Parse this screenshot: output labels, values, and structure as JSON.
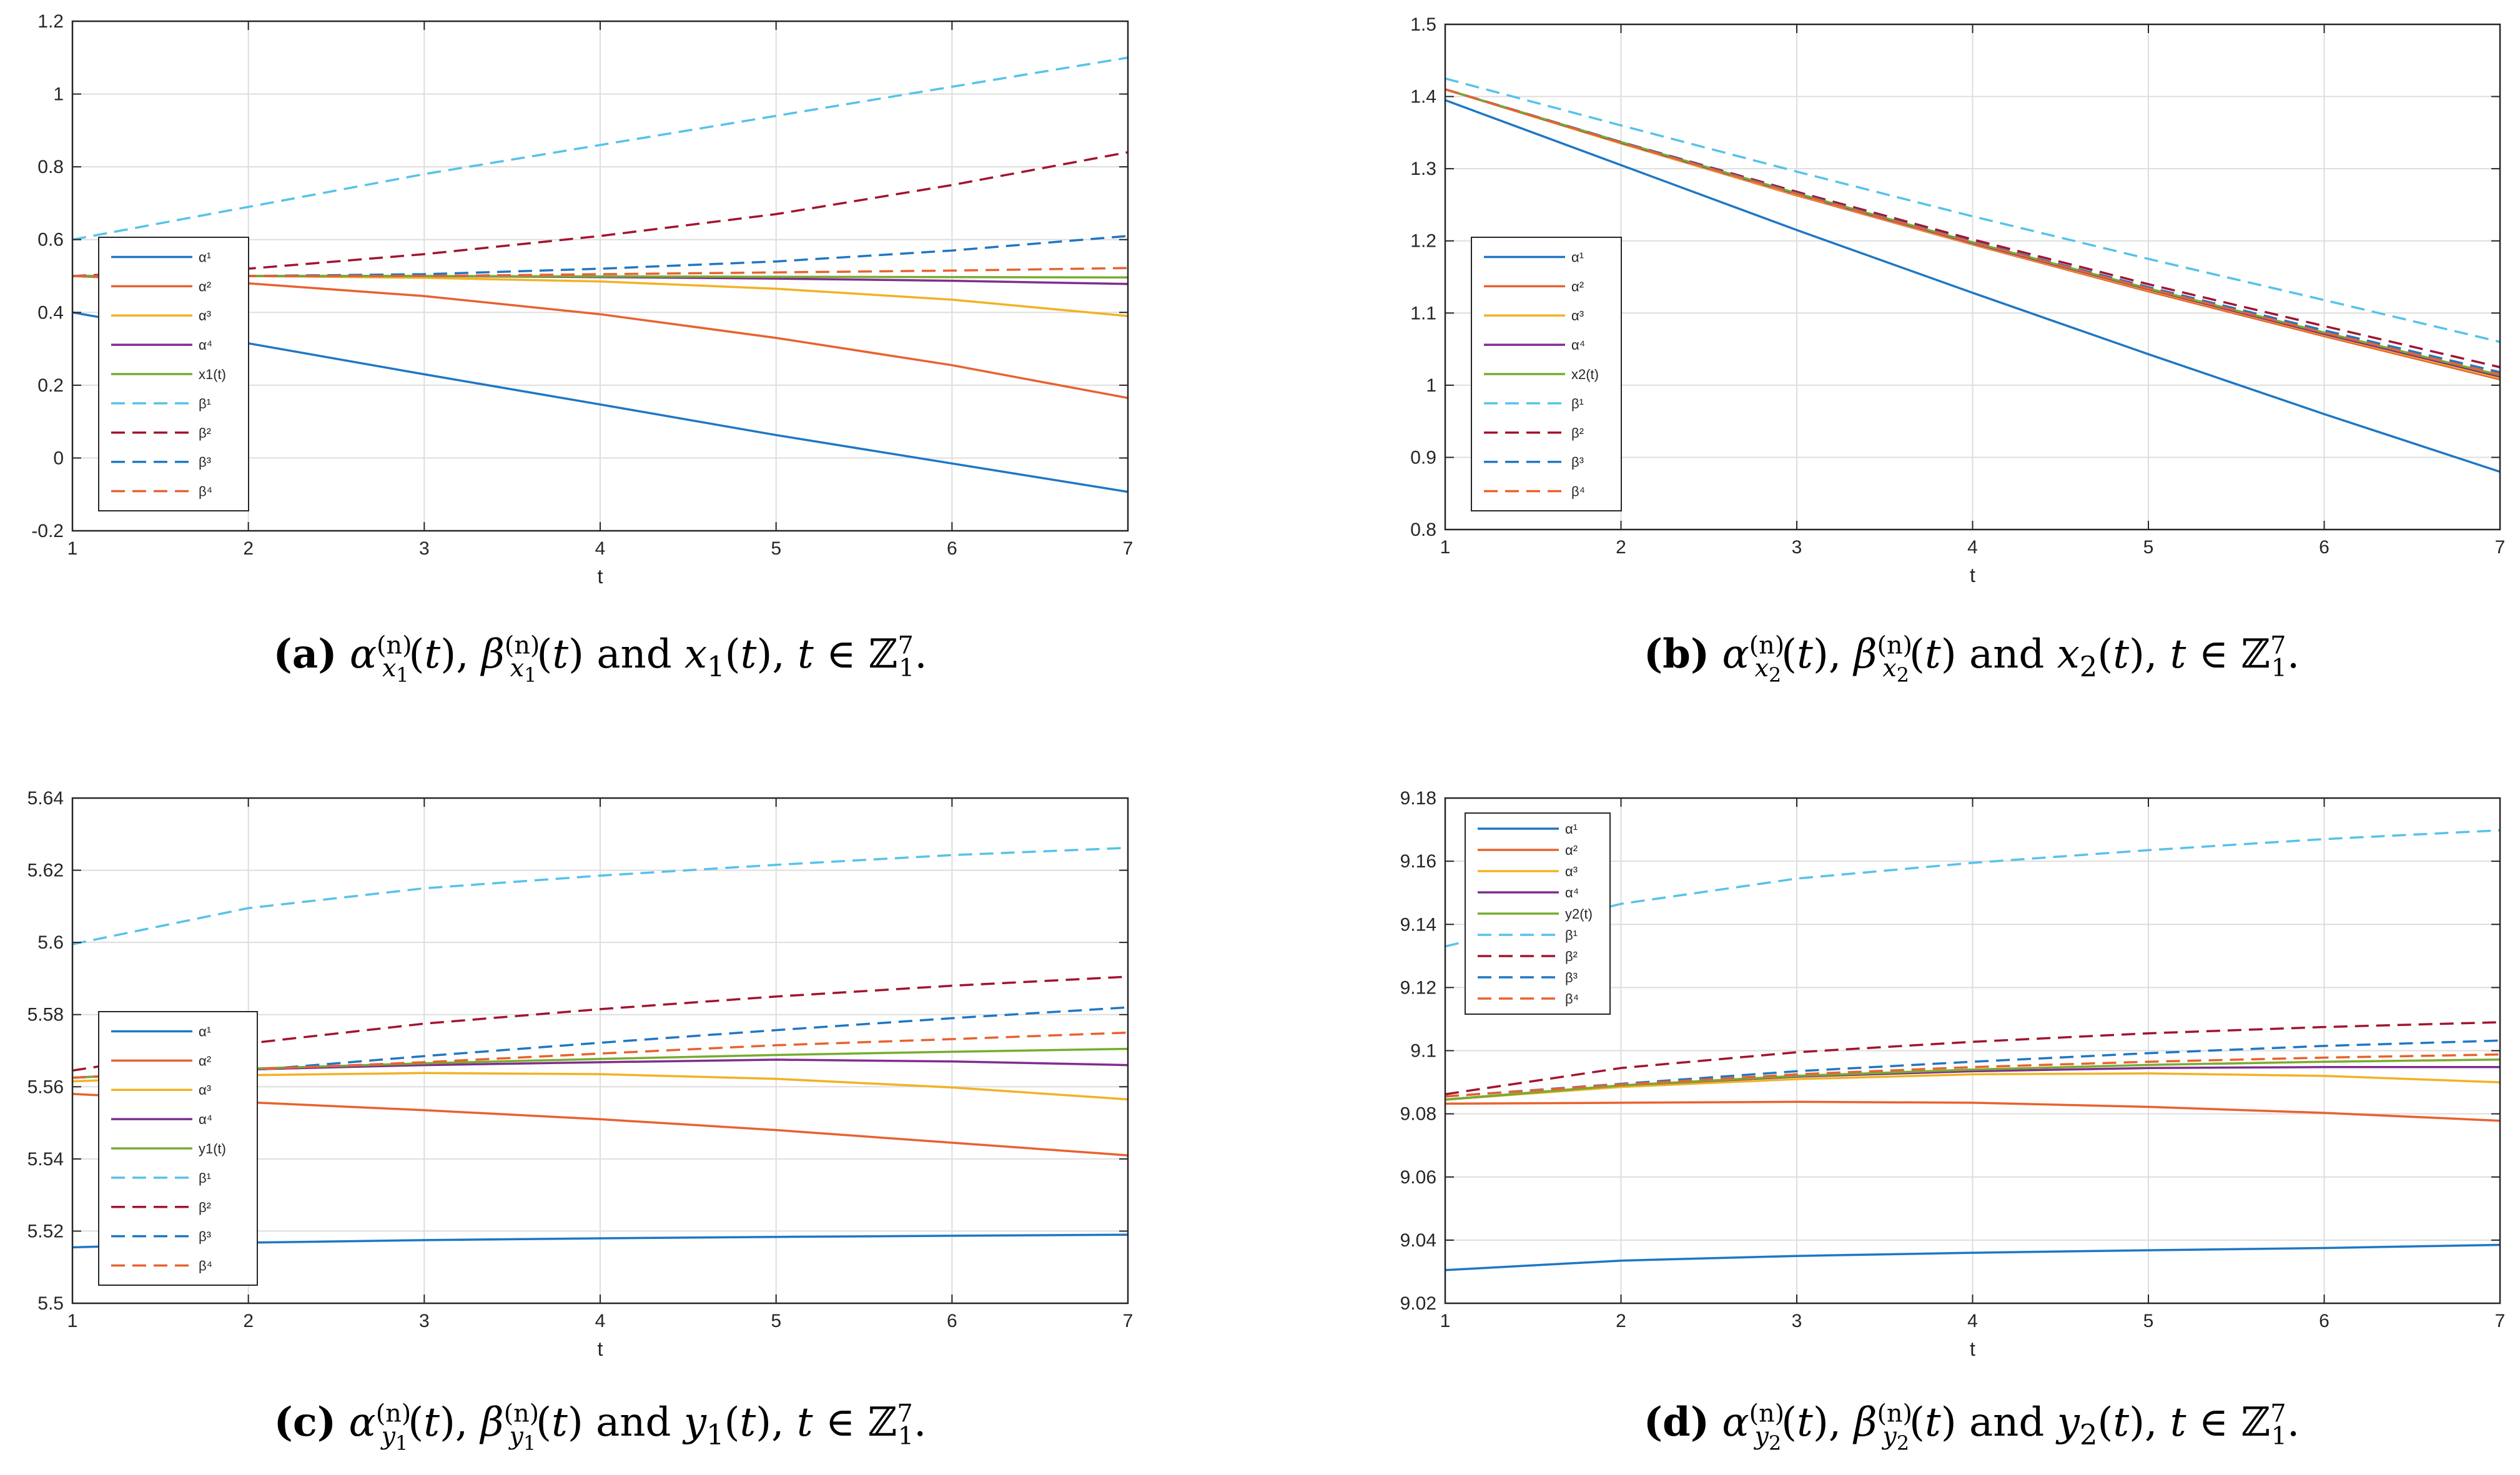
{
  "figure": {
    "legend_labels_common": [
      "α¹",
      "α²",
      "α³",
      "α⁴",
      null,
      "β¹",
      "β²",
      "β³",
      "β⁴"
    ],
    "colors": {
      "alpha1": "#1f77c4",
      "alpha2": "#e8622f",
      "alpha3": "#f0b325",
      "alpha4": "#7e2f8e",
      "state": "#77ac30",
      "beta1": "#56c2ea",
      "beta2": "#a2142f",
      "beta3": "#1f77c4",
      "beta4": "#e8622f"
    }
  },
  "chart_data": [
    {
      "id": "a",
      "type": "line",
      "xlabel": "t",
      "x": [
        1,
        2,
        3,
        4,
        5,
        6,
        7
      ],
      "xlim": [
        1,
        7
      ],
      "ylim": [
        -0.2,
        1.2
      ],
      "yticks": [
        "-0.2",
        "0",
        "0.2",
        "0.4",
        "0.6",
        "0.8",
        "1",
        "1.2"
      ],
      "xticks": [
        "1",
        "2",
        "3",
        "4",
        "5",
        "6",
        "7"
      ],
      "grid": true,
      "legend_position": "middle-left",
      "legend_state_label": "x1(t)",
      "series": [
        {
          "name": "α¹",
          "style": "solid",
          "color": "alpha1",
          "values": [
            0.4,
            0.315,
            0.23,
            0.147,
            0.063,
            -0.015,
            -0.093
          ]
        },
        {
          "name": "α²",
          "style": "solid",
          "color": "alpha2",
          "values": [
            0.5,
            0.48,
            0.445,
            0.395,
            0.33,
            0.255,
            0.165
          ]
        },
        {
          "name": "α³",
          "style": "solid",
          "color": "alpha3",
          "values": [
            0.5,
            0.5,
            0.495,
            0.485,
            0.465,
            0.435,
            0.39
          ]
        },
        {
          "name": "α⁴",
          "style": "solid",
          "color": "alpha4",
          "values": [
            0.5,
            0.5,
            0.5,
            0.497,
            0.493,
            0.487,
            0.478
          ]
        },
        {
          "name": "x1(t)",
          "style": "solid",
          "color": "state",
          "values": [
            0.5,
            0.5,
            0.5,
            0.499,
            0.498,
            0.497,
            0.496
          ]
        },
        {
          "name": "β¹",
          "style": "dashed",
          "color": "beta1",
          "values": [
            0.6,
            0.69,
            0.78,
            0.86,
            0.94,
            1.02,
            1.1
          ]
        },
        {
          "name": "β²",
          "style": "dashed",
          "color": "beta2",
          "values": [
            0.5,
            0.52,
            0.56,
            0.61,
            0.67,
            0.75,
            0.84
          ]
        },
        {
          "name": "β³",
          "style": "dashed",
          "color": "beta3",
          "values": [
            0.5,
            0.5,
            0.505,
            0.52,
            0.54,
            0.57,
            0.61
          ]
        },
        {
          "name": "β⁴",
          "style": "dashed",
          "color": "beta4",
          "values": [
            0.5,
            0.5,
            0.5,
            0.505,
            0.51,
            0.515,
            0.522
          ]
        }
      ]
    },
    {
      "id": "b",
      "type": "line",
      "xlabel": "t",
      "x": [
        1,
        2,
        3,
        4,
        5,
        6,
        7
      ],
      "xlim": [
        1,
        7
      ],
      "ylim": [
        0.8,
        1.5
      ],
      "yticks": [
        "0.8",
        "0.9",
        "1",
        "1.1",
        "1.2",
        "1.3",
        "1.4",
        "1.5"
      ],
      "xticks": [
        "1",
        "2",
        "3",
        "4",
        "5",
        "6",
        "7"
      ],
      "grid": true,
      "legend_position": "bottom-left",
      "legend_state_label": "x2(t)",
      "series": [
        {
          "name": "α¹",
          "style": "solid",
          "color": "alpha1",
          "values": [
            1.395,
            1.305,
            1.215,
            1.128,
            1.043,
            0.96,
            0.88
          ]
        },
        {
          "name": "α²",
          "style": "solid",
          "color": "alpha2",
          "values": [
            1.41,
            1.335,
            1.263,
            1.195,
            1.13,
            1.068,
            1.008
          ]
        },
        {
          "name": "α³",
          "style": "solid",
          "color": "alpha3",
          "values": [
            1.41,
            1.335,
            1.264,
            1.196,
            1.132,
            1.07,
            1.01
          ]
        },
        {
          "name": "α⁴",
          "style": "solid",
          "color": "alpha4",
          "values": [
            1.41,
            1.336,
            1.265,
            1.197,
            1.133,
            1.071,
            1.012
          ]
        },
        {
          "name": "x2(t)",
          "style": "solid",
          "color": "state",
          "values": [
            1.41,
            1.337,
            1.266,
            1.198,
            1.134,
            1.073,
            1.014
          ]
        },
        {
          "name": "β¹",
          "style": "dashed",
          "color": "beta1",
          "values": [
            1.425,
            1.36,
            1.296,
            1.234,
            1.175,
            1.118,
            1.06
          ]
        },
        {
          "name": "β²",
          "style": "dashed",
          "color": "beta2",
          "values": [
            1.41,
            1.337,
            1.268,
            1.202,
            1.14,
            1.082,
            1.025
          ]
        },
        {
          "name": "β³",
          "style": "dashed",
          "color": "beta3",
          "values": [
            1.41,
            1.337,
            1.266,
            1.199,
            1.136,
            1.076,
            1.018
          ]
        },
        {
          "name": "β⁴",
          "style": "dashed",
          "color": "beta4",
          "values": [
            1.41,
            1.336,
            1.265,
            1.198,
            1.134,
            1.073,
            1.015
          ]
        }
      ]
    },
    {
      "id": "c",
      "type": "line",
      "xlabel": "t",
      "x": [
        1,
        2,
        3,
        4,
        5,
        6,
        7
      ],
      "xlim": [
        1,
        7
      ],
      "ylim": [
        5.5,
        5.64
      ],
      "yticks": [
        "5.5",
        "5.52",
        "5.54",
        "5.56",
        "5.58",
        "5.6",
        "5.62",
        "5.64"
      ],
      "xticks": [
        "1",
        "2",
        "3",
        "4",
        "5",
        "6",
        "7"
      ],
      "grid": true,
      "legend_position": "bottom-left",
      "legend_state_label": "y1(t)",
      "series": [
        {
          "name": "α¹",
          "style": "solid",
          "color": "alpha1",
          "values": [
            5.5155,
            5.5168,
            5.5175,
            5.518,
            5.5184,
            5.5187,
            5.519
          ]
        },
        {
          "name": "α²",
          "style": "solid",
          "color": "alpha2",
          "values": [
            5.558,
            5.5557,
            5.5535,
            5.551,
            5.548,
            5.5445,
            5.541
          ]
        },
        {
          "name": "α³",
          "style": "solid",
          "color": "alpha3",
          "values": [
            5.5615,
            5.5632,
            5.5638,
            5.5635,
            5.5622,
            5.5598,
            5.5565
          ]
        },
        {
          "name": "α⁴",
          "style": "solid",
          "color": "alpha4",
          "values": [
            5.5625,
            5.5648,
            5.566,
            5.5668,
            5.5675,
            5.567,
            5.566
          ]
        },
        {
          "name": "y1(t)",
          "style": "solid",
          "color": "state",
          "values": [
            5.5625,
            5.565,
            5.5665,
            5.5677,
            5.5688,
            5.5697,
            5.5705
          ]
        },
        {
          "name": "β¹",
          "style": "dashed",
          "color": "beta1",
          "values": [
            5.5995,
            5.6095,
            5.615,
            5.6185,
            5.6215,
            5.6242,
            5.6262
          ]
        },
        {
          "name": "β²",
          "style": "dashed",
          "color": "beta2",
          "values": [
            5.5645,
            5.572,
            5.5775,
            5.5815,
            5.585,
            5.588,
            5.5905
          ]
        },
        {
          "name": "β³",
          "style": "dashed",
          "color": "beta3",
          "values": [
            5.5625,
            5.5645,
            5.5685,
            5.5722,
            5.5757,
            5.579,
            5.582
          ]
        },
        {
          "name": "β⁴",
          "style": "dashed",
          "color": "beta4",
          "values": [
            5.5625,
            5.5648,
            5.5668,
            5.5692,
            5.5715,
            5.5732,
            5.575
          ]
        }
      ]
    },
    {
      "id": "d",
      "type": "line",
      "xlabel": "t",
      "x": [
        1,
        2,
        3,
        4,
        5,
        6,
        7
      ],
      "xlim": [
        1,
        7
      ],
      "ylim": [
        9.02,
        9.18
      ],
      "yticks": [
        "9.02",
        "9.04",
        "9.06",
        "9.08",
        "9.1",
        "9.12",
        "9.14",
        "9.16",
        "9.18"
      ],
      "xticks": [
        "1",
        "2",
        "3",
        "4",
        "5",
        "6",
        "7"
      ],
      "grid": true,
      "legend_position": "top-left",
      "legend_state_label": "y2(t)",
      "series": [
        {
          "name": "α¹",
          "style": "solid",
          "color": "alpha1",
          "values": [
            9.0305,
            9.0335,
            9.035,
            9.036,
            9.0368,
            9.0375,
            9.0385
          ]
        },
        {
          "name": "α²",
          "style": "solid",
          "color": "alpha2",
          "values": [
            9.0832,
            9.0835,
            9.0838,
            9.0835,
            9.0822,
            9.0803,
            9.0778
          ]
        },
        {
          "name": "α³",
          "style": "solid",
          "color": "alpha3",
          "values": [
            9.0845,
            9.0885,
            9.091,
            9.0925,
            9.0928,
            9.092,
            9.09
          ]
        },
        {
          "name": "α⁴",
          "style": "solid",
          "color": "alpha4",
          "values": [
            9.0845,
            9.089,
            9.0918,
            9.0935,
            9.0945,
            9.0948,
            9.0948
          ]
        },
        {
          "name": "y2(t)",
          "style": "solid",
          "color": "state",
          "values": [
            9.0845,
            9.089,
            9.092,
            9.094,
            9.0955,
            9.0965,
            9.0972
          ]
        },
        {
          "name": "β¹",
          "style": "dashed",
          "color": "beta1",
          "values": [
            9.133,
            9.1465,
            9.1545,
            9.1595,
            9.1635,
            9.167,
            9.1698
          ]
        },
        {
          "name": "β²",
          "style": "dashed",
          "color": "beta2",
          "values": [
            9.0862,
            9.0945,
            9.0995,
            9.1028,
            9.1055,
            9.1075,
            9.109
          ]
        },
        {
          "name": "β³",
          "style": "dashed",
          "color": "beta3",
          "values": [
            9.0855,
            9.0895,
            9.0935,
            9.0965,
            9.0992,
            9.1015,
            9.1032
          ]
        },
        {
          "name": "β⁴",
          "style": "dashed",
          "color": "beta4",
          "values": [
            9.0855,
            9.0893,
            9.0925,
            9.0948,
            9.0965,
            9.0978,
            9.0988
          ]
        }
      ]
    }
  ],
  "captions": [
    {
      "id": "a",
      "tag": "(a)",
      "var": "x",
      "sub": "1",
      "state": "x1(t)",
      "domain": "t ∈ ℤ"
    },
    {
      "id": "b",
      "tag": "(b)",
      "var": "x",
      "sub": "2",
      "state": "x2(t)",
      "domain": "t ∈ ℤ"
    },
    {
      "id": "c",
      "tag": "(c)",
      "var": "y",
      "sub": "1",
      "state": "y1(t)",
      "domain": "t ∈ ℤ"
    },
    {
      "id": "d",
      "tag": "(d)",
      "var": "y",
      "sub": "2",
      "state": "y2(t)",
      "domain": "t ∈ ℤ"
    }
  ],
  "caption_words": {
    "and": "and",
    "alpha": "α",
    "beta": "β",
    "n_sup": "(n)",
    "domain_sup": "7",
    "domain_sub": "1"
  }
}
